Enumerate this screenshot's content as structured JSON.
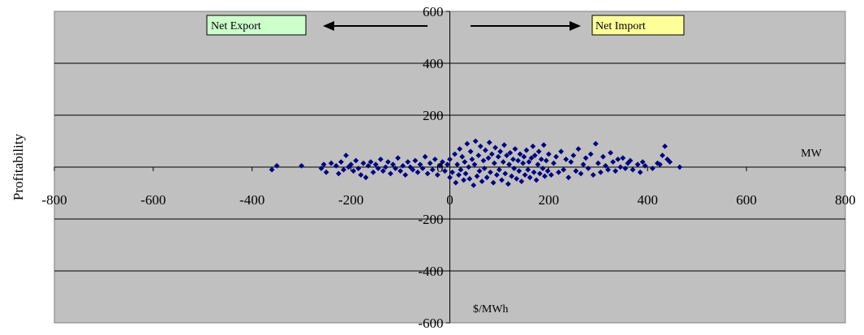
{
  "chart_data": {
    "type": "scatter",
    "title": "",
    "xlabel": "MW",
    "ylabel": "Profitability",
    "y_unit_label": "$/MWh",
    "xlim": [
      -800,
      800
    ],
    "ylim": [
      -600,
      600
    ],
    "x_ticks": [
      -800,
      -600,
      -400,
      -200,
      0,
      200,
      400,
      600,
      800
    ],
    "y_ticks": [
      -600,
      -400,
      -200,
      0,
      200,
      400,
      600
    ],
    "x_tick_labels": [
      "-800",
      "-600",
      "-400",
      "-200",
      "0",
      "200",
      "400",
      "600",
      "800"
    ],
    "y_tick_labels": [
      "-600",
      "-400",
      "-200",
      "0",
      "200",
      "400",
      "600"
    ],
    "grid": "horizontal major gridlines",
    "legend": "none",
    "colors": {
      "plot_background": "#c0c0c0",
      "marker": "#000080",
      "gridline": "#000000",
      "export_box": "#ccffcc",
      "import_box": "#ffff99"
    },
    "annotations": {
      "export_label": "Net Export",
      "import_label": "Net Import",
      "export_direction": "left",
      "import_direction": "right"
    },
    "marker_shape": "diamond",
    "series": [
      {
        "points": [
          [
            -360,
            -10
          ],
          [
            -350,
            5
          ],
          [
            -300,
            5
          ],
          [
            -260,
            -5
          ],
          [
            -255,
            10
          ],
          [
            -250,
            -20
          ],
          [
            -240,
            15
          ],
          [
            -230,
            5
          ],
          [
            -225,
            -25
          ],
          [
            -220,
            20
          ],
          [
            -215,
            -10
          ],
          [
            -210,
            45
          ],
          [
            -205,
            0
          ],
          [
            -200,
            10
          ],
          [
            -195,
            -15
          ],
          [
            -190,
            25
          ],
          [
            -185,
            -5
          ],
          [
            -180,
            -30
          ],
          [
            -175,
            15
          ],
          [
            -170,
            -40
          ],
          [
            -165,
            5
          ],
          [
            -160,
            20
          ],
          [
            -155,
            -20
          ],
          [
            -150,
            10
          ],
          [
            -145,
            -5
          ],
          [
            -140,
            30
          ],
          [
            -135,
            -15
          ],
          [
            -130,
            0
          ],
          [
            -125,
            20
          ],
          [
            -120,
            -25
          ],
          [
            -115,
            10
          ],
          [
            -110,
            -5
          ],
          [
            -105,
            35
          ],
          [
            -100,
            -15
          ],
          [
            -95,
            5
          ],
          [
            -90,
            -30
          ],
          [
            -85,
            20
          ],
          [
            -80,
            0
          ],
          [
            -75,
            -10
          ],
          [
            -70,
            25
          ],
          [
            -65,
            -20
          ],
          [
            -60,
            10
          ],
          [
            -55,
            -5
          ],
          [
            -50,
            40
          ],
          [
            -45,
            -25
          ],
          [
            -40,
            15
          ],
          [
            -35,
            -10
          ],
          [
            -30,
            30
          ],
          [
            -25,
            -30
          ],
          [
            -20,
            5
          ],
          [
            -15,
            20
          ],
          [
            -10,
            -15
          ],
          [
            -5,
            10
          ],
          [
            0,
            -40
          ],
          [
            0,
            30
          ],
          [
            5,
            -20
          ],
          [
            10,
            50
          ],
          [
            12,
            -60
          ],
          [
            15,
            10
          ],
          [
            18,
            -30
          ],
          [
            20,
            70
          ],
          [
            22,
            -10
          ],
          [
            25,
            40
          ],
          [
            28,
            -50
          ],
          [
            30,
            20
          ],
          [
            32,
            -25
          ],
          [
            35,
            90
          ],
          [
            38,
            0
          ],
          [
            40,
            -45
          ],
          [
            42,
            60
          ],
          [
            45,
            30
          ],
          [
            48,
            -70
          ],
          [
            50,
            10
          ],
          [
            52,
            100
          ],
          [
            55,
            -35
          ],
          [
            58,
            45
          ],
          [
            60,
            -15
          ],
          [
            62,
            80
          ],
          [
            65,
            -55
          ],
          [
            68,
            25
          ],
          [
            70,
            -5
          ],
          [
            72,
            65
          ],
          [
            75,
            -40
          ],
          [
            78,
            35
          ],
          [
            80,
            95
          ],
          [
            82,
            -20
          ],
          [
            85,
            50
          ],
          [
            88,
            -60
          ],
          [
            90,
            15
          ],
          [
            92,
            75
          ],
          [
            95,
            -30
          ],
          [
            98,
            40
          ],
          [
            100,
            -10
          ],
          [
            102,
            60
          ],
          [
            105,
            -50
          ],
          [
            108,
            20
          ],
          [
            110,
            85
          ],
          [
            112,
            -25
          ],
          [
            115,
            45
          ],
          [
            118,
            -65
          ],
          [
            120,
            10
          ],
          [
            122,
            55
          ],
          [
            125,
            -35
          ],
          [
            128,
            30
          ],
          [
            130,
            -5
          ],
          [
            132,
            70
          ],
          [
            135,
            -45
          ],
          [
            138,
            25
          ],
          [
            140,
            -15
          ],
          [
            142,
            50
          ],
          [
            145,
            -55
          ],
          [
            148,
            15
          ],
          [
            150,
            40
          ],
          [
            152,
            -30
          ],
          [
            155,
            65
          ],
          [
            158,
            -10
          ],
          [
            160,
            20
          ],
          [
            162,
            -40
          ],
          [
            165,
            35
          ],
          [
            168,
            80
          ],
          [
            170,
            -20
          ],
          [
            172,
            45
          ],
          [
            175,
            -50
          ],
          [
            178,
            10
          ],
          [
            180,
            60
          ],
          [
            182,
            -25
          ],
          [
            185,
            30
          ],
          [
            188,
            -5
          ],
          [
            190,
            85
          ],
          [
            192,
            -35
          ],
          [
            195,
            25
          ],
          [
            198,
            -15
          ],
          [
            200,
            50
          ],
          [
            205,
            -30
          ],
          [
            210,
            15
          ],
          [
            215,
            40
          ],
          [
            220,
            -20
          ],
          [
            225,
            60
          ],
          [
            230,
            -10
          ],
          [
            235,
            30
          ],
          [
            240,
            -40
          ],
          [
            245,
            20
          ],
          [
            250,
            45
          ],
          [
            255,
            -15
          ],
          [
            260,
            70
          ],
          [
            265,
            -25
          ],
          [
            270,
            10
          ],
          [
            275,
            35
          ],
          [
            280,
            -5
          ],
          [
            285,
            50
          ],
          [
            290,
            -30
          ],
          [
            295,
            90
          ],
          [
            300,
            15
          ],
          [
            305,
            -20
          ],
          [
            310,
            40
          ],
          [
            315,
            5
          ],
          [
            320,
            -10
          ],
          [
            325,
            55
          ],
          [
            330,
            20
          ],
          [
            335,
            -15
          ],
          [
            340,
            30
          ],
          [
            345,
            0
          ],
          [
            350,
            35
          ],
          [
            355,
            -5
          ],
          [
            360,
            15
          ],
          [
            365,
            25
          ],
          [
            370,
            -10
          ],
          [
            380,
            10
          ],
          [
            385,
            -20
          ],
          [
            390,
            20
          ],
          [
            395,
            5
          ],
          [
            410,
            -5
          ],
          [
            420,
            15
          ],
          [
            425,
            10
          ],
          [
            430,
            45
          ],
          [
            435,
            80
          ],
          [
            440,
            30
          ],
          [
            445,
            20
          ],
          [
            465,
            0
          ]
        ]
      }
    ]
  }
}
